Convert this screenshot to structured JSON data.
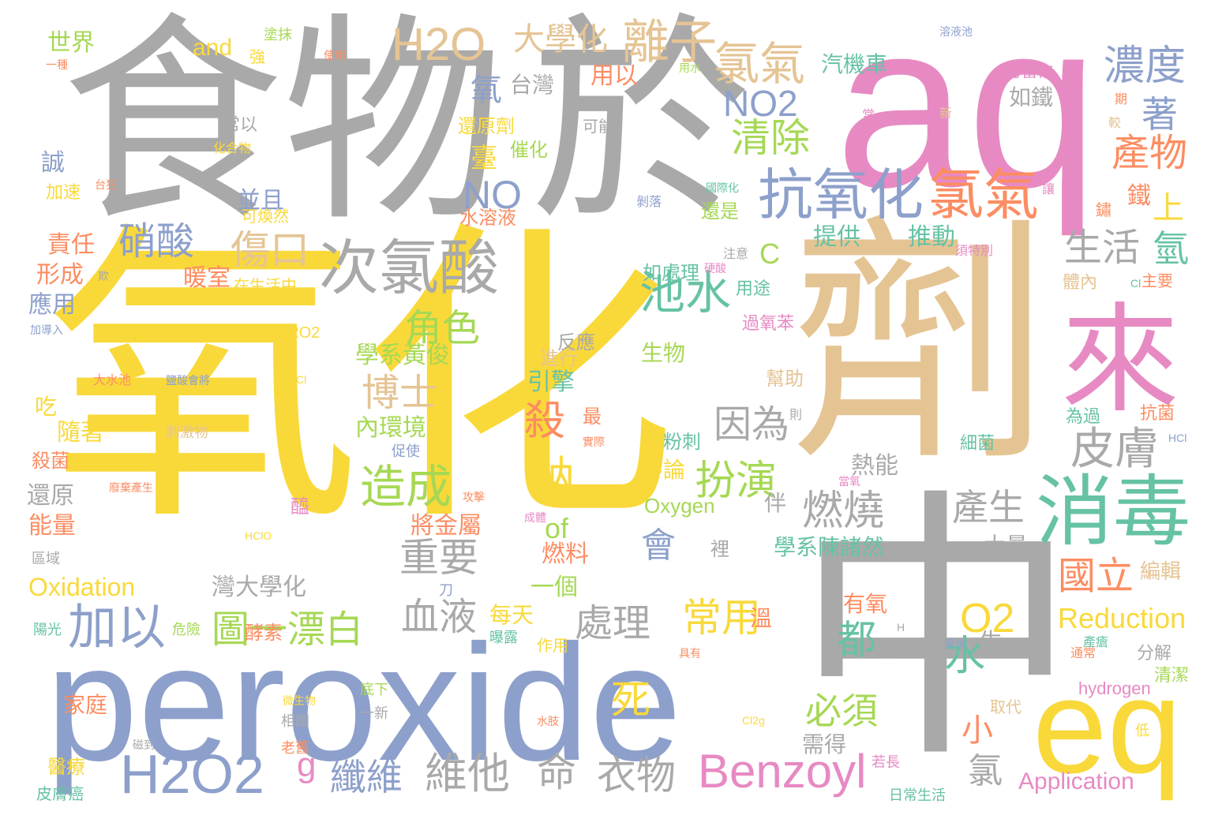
{
  "title": "Oxidizing agent word cloud",
  "palette": {
    "yellow": "#F9D93A",
    "gray": "#A9A9A9",
    "pink": "#E78AC3",
    "blue": "#8DA0CB",
    "tan": "#E5C494",
    "orange": "#FC8D62",
    "green": "#66C2A5",
    "lime": "#A6D854"
  },
  "words": [
    {
      "text": "氧化",
      "color": "yellow"
    },
    {
      "text": "食物",
      "color": "gray"
    },
    {
      "text": "於",
      "color": "gray"
    },
    {
      "text": "aq",
      "color": "pink"
    },
    {
      "text": "劑",
      "color": "tan"
    },
    {
      "text": "peroxide",
      "color": "blue"
    },
    {
      "text": "中",
      "color": "gray"
    },
    {
      "text": "eq",
      "color": "yellow"
    },
    {
      "text": "來",
      "color": "pink"
    },
    {
      "text": "消毒",
      "color": "green"
    },
    {
      "text": "抗氧化",
      "color": "blue"
    },
    {
      "text": "氯氣",
      "color": "orange"
    },
    {
      "text": "次氯酸",
      "color": "gray"
    },
    {
      "text": "H2O2",
      "color": "blue"
    },
    {
      "text": "Benzoyl",
      "color": "pink"
    },
    {
      "text": "H2O",
      "color": "tan"
    },
    {
      "text": "大學化",
      "color": "tan"
    },
    {
      "text": "離子",
      "color": "tan"
    },
    {
      "text": "氯氣",
      "color": "tan"
    },
    {
      "text": "濃度",
      "color": "blue"
    },
    {
      "text": "著",
      "color": "blue"
    },
    {
      "text": "產物",
      "color": "orange"
    },
    {
      "text": "NO2",
      "color": "blue"
    },
    {
      "text": "清除",
      "color": "lime"
    },
    {
      "text": "NO",
      "color": "blue"
    },
    {
      "text": "硝酸",
      "color": "blue"
    },
    {
      "text": "傷口",
      "color": "tan"
    },
    {
      "text": "池水",
      "color": "green"
    },
    {
      "text": "角色",
      "color": "lime"
    },
    {
      "text": "博士",
      "color": "tan"
    },
    {
      "text": "殺",
      "color": "orange"
    },
    {
      "text": "鈉",
      "color": "yellow"
    },
    {
      "text": "造成",
      "color": "lime"
    },
    {
      "text": "扮演",
      "color": "lime"
    },
    {
      "text": "因為",
      "color": "gray"
    },
    {
      "text": "燃燒",
      "color": "gray"
    },
    {
      "text": "皮膚",
      "color": "gray"
    },
    {
      "text": "產生",
      "color": "gray"
    },
    {
      "text": "生活",
      "color": "gray"
    },
    {
      "text": "氫",
      "color": "green"
    },
    {
      "text": "上",
      "color": "yellow"
    },
    {
      "text": "鐵",
      "color": "orange"
    },
    {
      "text": "加以",
      "color": "blue"
    },
    {
      "text": "圖一漂白",
      "color": "lime"
    },
    {
      "text": "重要",
      "color": "gray"
    },
    {
      "text": "血液",
      "color": "gray"
    },
    {
      "text": "處理",
      "color": "gray"
    },
    {
      "text": "常用",
      "color": "yellow"
    },
    {
      "text": "會",
      "color": "blue"
    },
    {
      "text": "都",
      "color": "green"
    },
    {
      "text": "O2",
      "color": "yellow"
    },
    {
      "text": "國立",
      "color": "orange"
    },
    {
      "text": "水",
      "color": "green"
    },
    {
      "text": "Reduction",
      "color": "yellow"
    },
    {
      "text": "Oxidation",
      "color": "yellow"
    },
    {
      "text": "維他",
      "color": "gray"
    },
    {
      "text": "命",
      "color": "gray"
    },
    {
      "text": "衣物",
      "color": "gray"
    },
    {
      "text": "纖維",
      "color": "blue"
    },
    {
      "text": "g",
      "color": "pink"
    },
    {
      "text": "死",
      "color": "yellow"
    },
    {
      "text": "必須",
      "color": "lime"
    },
    {
      "text": "小",
      "color": "orange"
    },
    {
      "text": "氯",
      "color": "gray"
    },
    {
      "text": "Application",
      "color": "pink"
    },
    {
      "text": "Oxygen",
      "color": "lime"
    },
    {
      "text": "of",
      "color": "lime"
    },
    {
      "text": "C",
      "color": "lime"
    },
    {
      "text": "氧",
      "color": "blue"
    },
    {
      "text": "台灣",
      "color": "gray"
    },
    {
      "text": "臺",
      "color": "yellow"
    },
    {
      "text": "並且",
      "color": "blue"
    },
    {
      "text": "學系黃俊",
      "color": "lime"
    },
    {
      "text": "引擎",
      "color": "green"
    },
    {
      "text": "內環境",
      "color": "lime"
    },
    {
      "text": "將金屬",
      "color": "orange"
    },
    {
      "text": "燃料",
      "color": "orange"
    },
    {
      "text": "一個",
      "color": "lime"
    },
    {
      "text": "每天",
      "color": "yellow"
    },
    {
      "text": "作用",
      "color": "yellow"
    },
    {
      "text": "灣大學化",
      "color": "gray"
    },
    {
      "text": "暖室",
      "color": "orange"
    },
    {
      "text": "在生活中",
      "color": "yellow"
    },
    {
      "text": "世界",
      "color": "lime"
    },
    {
      "text": "and",
      "color": "yellow"
    },
    {
      "text": "強",
      "color": "yellow"
    },
    {
      "text": "誠",
      "color": "blue"
    },
    {
      "text": "加速",
      "color": "yellow"
    },
    {
      "text": "責任",
      "color": "orange"
    },
    {
      "text": "形成",
      "color": "orange"
    },
    {
      "text": "應用",
      "color": "blue"
    },
    {
      "text": "吃",
      "color": "yellow"
    },
    {
      "text": "隨著",
      "color": "yellow"
    },
    {
      "text": "殺菌",
      "color": "orange"
    },
    {
      "text": "還原",
      "color": "gray"
    },
    {
      "text": "能量",
      "color": "orange"
    },
    {
      "text": "醫療",
      "color": "yellow"
    },
    {
      "text": "家庭",
      "color": "orange"
    },
    {
      "text": "皮膚癌",
      "color": "green"
    },
    {
      "text": "陽光",
      "color": "green"
    },
    {
      "text": "區域",
      "color": "gray"
    },
    {
      "text": "汽機車",
      "color": "green"
    },
    {
      "text": "如鐵",
      "color": "gray"
    },
    {
      "text": "還原劑",
      "color": "yellow"
    },
    {
      "text": "催化",
      "color": "lime"
    },
    {
      "text": "用以",
      "color": "orange"
    },
    {
      "text": "水溶液",
      "color": "orange"
    },
    {
      "text": "可能",
      "color": "gray"
    },
    {
      "text": "提供",
      "color": "green"
    },
    {
      "text": "推動",
      "color": "green"
    },
    {
      "text": "還是",
      "color": "lime"
    },
    {
      "text": "如處理",
      "color": "green"
    },
    {
      "text": "用途",
      "color": "green"
    },
    {
      "text": "過氧苯",
      "color": "pink"
    },
    {
      "text": "反應",
      "color": "gray"
    },
    {
      "text": "進行",
      "color": "tan"
    },
    {
      "text": "生物",
      "color": "lime"
    },
    {
      "text": "熱能",
      "color": "gray"
    },
    {
      "text": "不論",
      "color": "yellow"
    },
    {
      "text": "粉刺",
      "color": "green"
    },
    {
      "text": "幫助",
      "color": "tan"
    },
    {
      "text": "伴",
      "color": "gray"
    },
    {
      "text": "學系陳諸然",
      "color": "green"
    },
    {
      "text": "大量",
      "color": "gray"
    },
    {
      "text": "有氧",
      "color": "orange"
    },
    {
      "text": "溫",
      "color": "orange"
    },
    {
      "text": "生",
      "color": "gray"
    },
    {
      "text": "分解",
      "color": "gray"
    },
    {
      "text": "清潔",
      "color": "lime"
    },
    {
      "text": "hydrogen",
      "color": "pink"
    },
    {
      "text": "取代",
      "color": "tan"
    },
    {
      "text": "需得",
      "color": "gray"
    },
    {
      "text": "若長",
      "color": "pink"
    },
    {
      "text": "日常生活",
      "color": "green"
    },
    {
      "text": "編輯",
      "color": "tan"
    },
    {
      "text": "細菌",
      "color": "green"
    },
    {
      "text": "為過",
      "color": "green"
    },
    {
      "text": "抗菌",
      "color": "orange"
    },
    {
      "text": "體內",
      "color": "tan"
    },
    {
      "text": "主要",
      "color": "orange"
    },
    {
      "text": "可當作",
      "color": "pink"
    },
    {
      "text": "期",
      "color": "orange"
    },
    {
      "text": "較",
      "color": "tan"
    },
    {
      "text": "新",
      "color": "tan"
    },
    {
      "text": "常",
      "color": "pink"
    },
    {
      "text": "鏽",
      "color": "orange"
    },
    {
      "text": "讓",
      "color": "pink"
    },
    {
      "text": "須特別",
      "color": "pink"
    },
    {
      "text": "酵素",
      "color": "orange"
    },
    {
      "text": "危險",
      "color": "lime"
    },
    {
      "text": "曝露",
      "color": "green"
    },
    {
      "text": "刀",
      "color": "blue"
    },
    {
      "text": "刺激物",
      "color": "tan"
    },
    {
      "text": "促使",
      "color": "blue"
    },
    {
      "text": "底下",
      "color": "lime"
    },
    {
      "text": "一新",
      "color": "gray"
    },
    {
      "text": "相關",
      "color": "gray"
    },
    {
      "text": "老舊",
      "color": "orange"
    },
    {
      "text": "醯",
      "color": "pink"
    },
    {
      "text": "塗抹",
      "color": "lime"
    },
    {
      "text": "使用",
      "color": "orange"
    },
    {
      "text": "常以",
      "color": "gray"
    },
    {
      "text": "化合物",
      "color": "yellow"
    },
    {
      "text": "HCl",
      "color": "blue"
    },
    {
      "text": "Cl",
      "color": "green"
    },
    {
      "text": "HOCl",
      "color": "yellow"
    },
    {
      "text": "HClO",
      "color": "yellow"
    },
    {
      "text": "2H2O2",
      "color": "yellow"
    },
    {
      "text": "Cl2g",
      "color": "yellow"
    },
    {
      "text": "H",
      "color": "gray"
    },
    {
      "text": "最",
      "color": "orange"
    },
    {
      "text": "裡",
      "color": "gray"
    },
    {
      "text": "則",
      "color": "gray"
    },
    {
      "text": "低",
      "color": "yellow"
    },
    {
      "text": "存在",
      "color": "gray"
    },
    {
      "text": "具有",
      "color": "orange"
    },
    {
      "text": "廢水",
      "color": "blue"
    },
    {
      "text": "產瘡",
      "color": "green"
    },
    {
      "text": "當氧",
      "color": "pink"
    },
    {
      "text": "微生物",
      "color": "yellow"
    },
    {
      "text": "水肢",
      "color": "orange"
    },
    {
      "text": "磁到",
      "color": "gray"
    },
    {
      "text": "成體",
      "color": "pink"
    },
    {
      "text": "攻擊",
      "color": "orange"
    },
    {
      "text": "實際",
      "color": "orange"
    },
    {
      "text": "廢棄產生",
      "color": "orange"
    },
    {
      "text": "大水池",
      "color": "orange"
    },
    {
      "text": "鹽酸會將",
      "color": "blue"
    },
    {
      "text": "台狂",
      "color": "orange"
    },
    {
      "text": "加導入",
      "color": "blue"
    },
    {
      "text": "欺",
      "color": "gray"
    },
    {
      "text": "一種",
      "color": "orange"
    },
    {
      "text": "用水",
      "color": "lime"
    },
    {
      "text": "剝落",
      "color": "blue"
    },
    {
      "text": "國際化",
      "color": "green"
    },
    {
      "text": "溶液池",
      "color": "blue"
    },
    {
      "text": "注意",
      "color": "gray"
    },
    {
      "text": "硬酸",
      "color": "pink"
    },
    {
      "text": "可煥然",
      "color": "yellow"
    },
    {
      "text": "通常",
      "color": "orange"
    }
  ]
}
